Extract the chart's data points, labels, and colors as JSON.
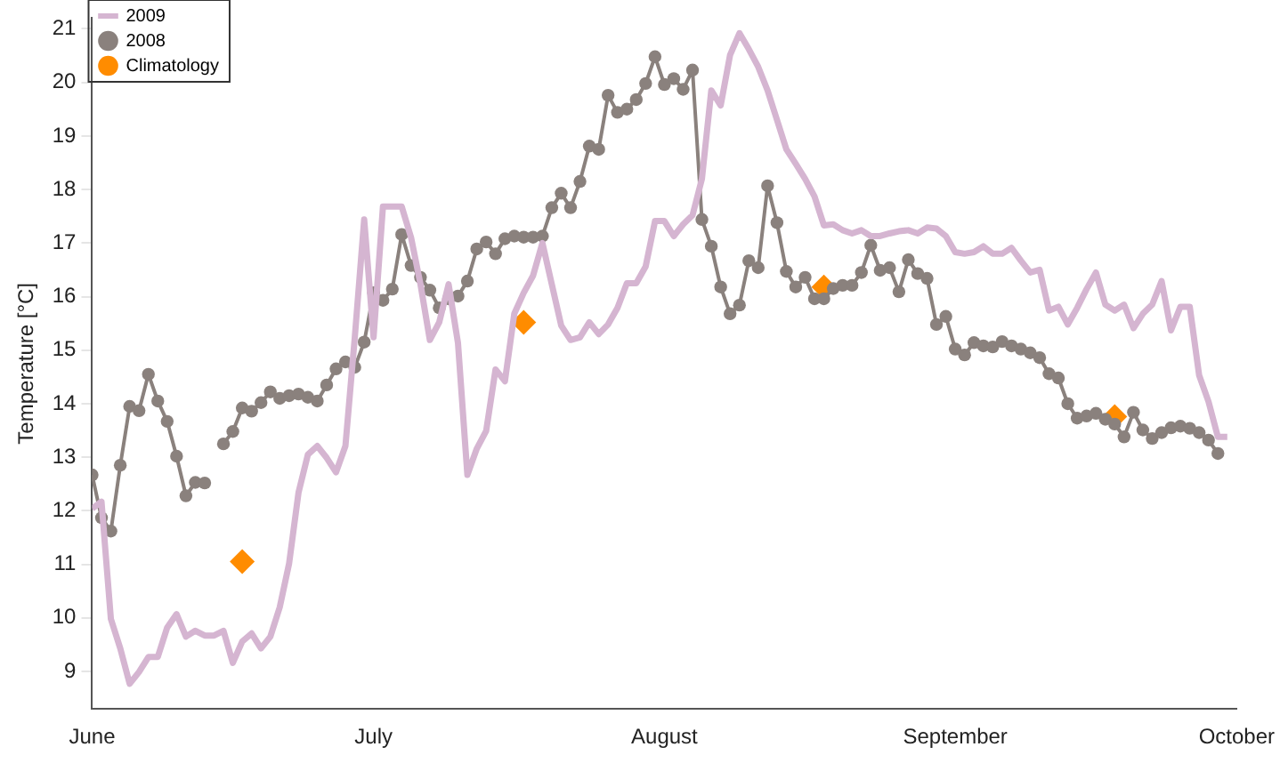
{
  "chart_data": {
    "type": "line",
    "ylabel": "Temperature [°C]",
    "x": [
      "--06-01",
      "--06-02",
      "--06-03",
      "--06-04",
      "--06-05",
      "--06-06",
      "--06-07",
      "--06-08",
      "--06-09",
      "--06-10",
      "--06-11",
      "--06-12",
      "--06-13",
      "--06-14",
      "--06-15",
      "--06-16",
      "--06-17",
      "--06-18",
      "--06-19",
      "--06-20",
      "--06-21",
      "--06-22",
      "--06-23",
      "--06-24",
      "--06-25",
      "--06-26",
      "--06-27",
      "--06-28",
      "--06-29",
      "--06-30",
      "--07-01",
      "--07-02",
      "--07-03",
      "--07-04",
      "--07-05",
      "--07-06",
      "--07-07",
      "--07-08",
      "--07-09",
      "--07-10",
      "--07-11",
      "--07-12",
      "--07-13",
      "--07-14",
      "--07-15",
      "--07-16",
      "--07-17",
      "--07-18",
      "--07-19",
      "--07-20",
      "--07-21",
      "--07-22",
      "--07-23",
      "--07-24",
      "--07-25",
      "--07-26",
      "--07-27",
      "--07-28",
      "--07-29",
      "--07-30",
      "--07-31",
      "--08-01",
      "--08-02",
      "--08-03",
      "--08-04",
      "--08-05",
      "--08-06",
      "--08-07",
      "--08-08",
      "--08-09",
      "--08-10",
      "--08-11",
      "--08-12",
      "--08-13",
      "--08-14",
      "--08-15",
      "--08-16",
      "--08-17",
      "--08-18",
      "--08-19",
      "--08-20",
      "--08-21",
      "--08-22",
      "--08-23",
      "--08-24",
      "--08-25",
      "--08-26",
      "--08-27",
      "--08-28",
      "--08-29",
      "--08-30",
      "--08-31",
      "--09-01",
      "--09-02",
      "--09-03",
      "--09-04",
      "--09-05",
      "--09-06",
      "--09-07",
      "--09-08",
      "--09-09",
      "--09-10",
      "--09-11",
      "--09-12",
      "--09-13",
      "--09-14",
      "--09-15",
      "--09-16",
      "--09-17",
      "--09-18",
      "--09-19",
      "--09-20",
      "--09-21",
      "--09-22",
      "--09-23",
      "--09-24",
      "--09-25",
      "--09-26",
      "--09-27",
      "--09-28",
      "--09-29",
      "--09-30"
    ],
    "series": [
      {
        "name": "2009",
        "color": "#d5b5d1",
        "marker": "none",
        "values": [
          12.04,
          12.17,
          9.98,
          9.43,
          8.77,
          8.99,
          9.27,
          9.27,
          9.82,
          10.07,
          9.65,
          9.76,
          9.67,
          9.67,
          9.76,
          9.16,
          9.56,
          9.71,
          9.43,
          9.65,
          10.2,
          11.02,
          12.34,
          13.05,
          13.21,
          12.99,
          12.72,
          13.21,
          15.24,
          17.44,
          15.24,
          17.68,
          17.68,
          17.68,
          17.1,
          16.23,
          15.19,
          15.52,
          16.23,
          15.13,
          12.67,
          13.16,
          13.49,
          14.64,
          14.42,
          15.68,
          16.07,
          16.39,
          17.0,
          16.23,
          15.46,
          15.19,
          15.24,
          15.52,
          15.3,
          15.48,
          15.79,
          16.25,
          16.25,
          16.56,
          17.41,
          17.41,
          17.13,
          17.35,
          17.52,
          18.2,
          19.85,
          19.57,
          20.51,
          20.92,
          20.62,
          20.29,
          19.85,
          19.3,
          18.75,
          18.48,
          18.2,
          17.87,
          17.33,
          17.35,
          17.24,
          17.18,
          17.24,
          17.13,
          17.13,
          17.18,
          17.22,
          17.24,
          17.18,
          17.29,
          17.27,
          17.13,
          16.83,
          16.8,
          16.83,
          16.94,
          16.8,
          16.8,
          16.91,
          16.67,
          16.45,
          16.5,
          15.74,
          15.81,
          15.48,
          15.79,
          16.14,
          16.45,
          15.85,
          15.74,
          15.85,
          15.41,
          15.68,
          15.85,
          16.29,
          15.37,
          15.81,
          15.81,
          14.53,
          14.04,
          13.38,
          13.38
        ]
      },
      {
        "name": "2008",
        "color": "#8a817d",
        "marker": "circle",
        "values": [
          12.67,
          11.87,
          11.62,
          12.85,
          13.95,
          13.87,
          14.55,
          14.05,
          13.67,
          13.02,
          12.28,
          12.53,
          12.52,
          null,
          13.25,
          13.48,
          13.92,
          13.86,
          14.02,
          14.22,
          14.1,
          14.15,
          14.18,
          14.12,
          14.05,
          14.35,
          14.65,
          14.78,
          14.68,
          15.15,
          16.07,
          15.93,
          16.14,
          17.16,
          16.58,
          16.36,
          16.12,
          15.79,
          15.96,
          16.01,
          16.29,
          16.89,
          17.02,
          16.8,
          17.08,
          17.13,
          17.11,
          17.11,
          17.13,
          17.66,
          17.93,
          17.66,
          18.15,
          18.81,
          18.75,
          19.76,
          19.44,
          19.5,
          19.68,
          19.98,
          20.48,
          19.96,
          20.07,
          19.87,
          20.23,
          17.44,
          16.94,
          16.18,
          15.68,
          15.84,
          16.67,
          16.54,
          18.07,
          17.38,
          16.47,
          16.18,
          16.36,
          15.96,
          15.96,
          16.15,
          16.21,
          16.21,
          16.45,
          16.96,
          16.49,
          16.54,
          16.09,
          16.69,
          16.43,
          16.34,
          15.48,
          15.63,
          15.02,
          14.91,
          15.14,
          15.08,
          15.06,
          15.16,
          15.08,
          15.02,
          14.95,
          14.86,
          14.56,
          14.48,
          14.0,
          13.73,
          13.77,
          13.82,
          13.71,
          13.62,
          13.38,
          13.84,
          13.51,
          13.35,
          13.46,
          13.55,
          13.58,
          13.54,
          13.46,
          13.32,
          13.07,
          null
        ]
      },
      {
        "name": "Climatology",
        "type": "scatter",
        "color": "#ff8c00",
        "marker": "diamond",
        "x": [
          "--06-17",
          "--07-17",
          "--08-18",
          "--09-18"
        ],
        "values": [
          11.05,
          15.52,
          16.18,
          13.76
        ]
      }
    ],
    "xlim": [
      "--06-01",
      "--10-01"
    ],
    "xticks": [
      {
        "value": "--06-01",
        "label": "June"
      },
      {
        "value": "--07-01",
        "label": "July"
      },
      {
        "value": "--08-01",
        "label": "August"
      },
      {
        "value": "--09-01",
        "label": "September"
      },
      {
        "value": "--10-01",
        "label": "October"
      }
    ],
    "ylim": [
      8.3,
      21.2
    ],
    "yticks": [
      9,
      10,
      11,
      12,
      13,
      14,
      15,
      16,
      17,
      18,
      19,
      20,
      21
    ],
    "grid": false,
    "legend": "top left"
  }
}
